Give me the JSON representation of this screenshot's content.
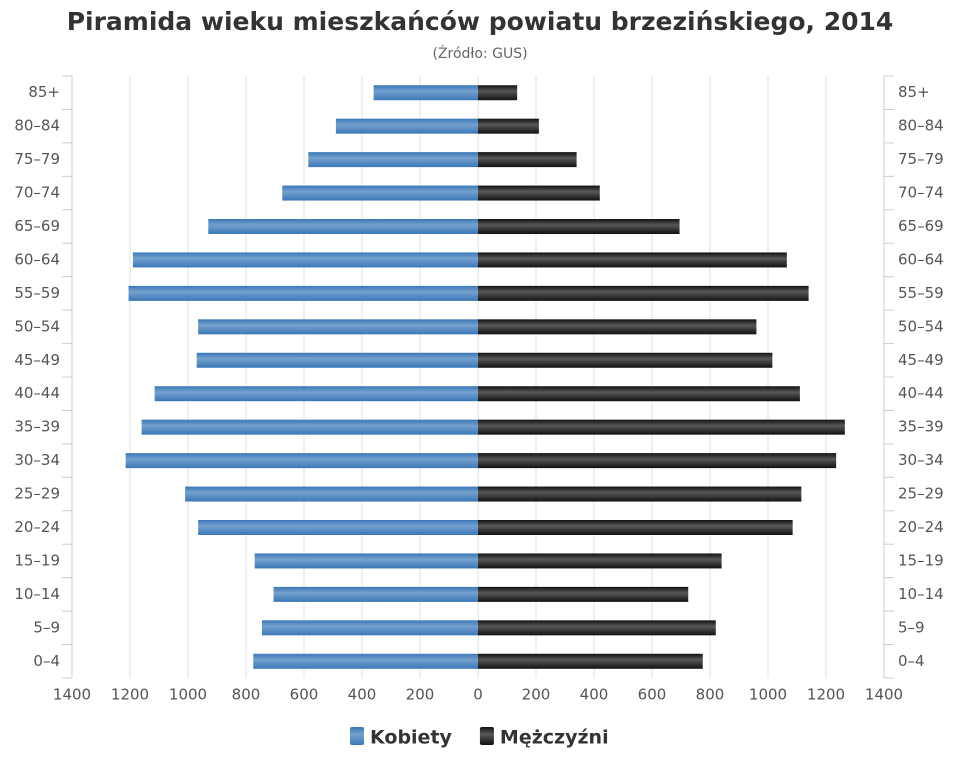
{
  "chart_data": {
    "type": "pyramid",
    "title": "Piramida wieku mieszkańców powiatu brzezińskiego, 2014",
    "subtitle": "(Źródło: GUS)",
    "categories": [
      "0–4",
      "5–9",
      "10–14",
      "15–19",
      "20–24",
      "25–29",
      "30–34",
      "35–39",
      "40–44",
      "45–49",
      "50–54",
      "55–59",
      "60–64",
      "65–69",
      "70–74",
      "75–79",
      "80–84",
      "85+"
    ],
    "series": [
      {
        "name": "Kobiety",
        "color": "#3a78b8",
        "values": [
          -775,
          -745,
          -705,
          -770,
          -965,
          -1010,
          -1215,
          -1160,
          -1115,
          -970,
          -965,
          -1205,
          -1190,
          -930,
          -675,
          -585,
          -490,
          -360
        ]
      },
      {
        "name": "Mężczyźni",
        "color": "#111111",
        "values": [
          775,
          820,
          725,
          840,
          1085,
          1115,
          1235,
          1265,
          1110,
          1015,
          960,
          1140,
          1065,
          695,
          420,
          340,
          210,
          135
        ]
      }
    ],
    "xlim": [
      -1400,
      1400
    ],
    "xticks": [
      {
        "value": -1400,
        "label": "1400"
      },
      {
        "value": -1200,
        "label": "1200"
      },
      {
        "value": -1000,
        "label": "1000"
      },
      {
        "value": -800,
        "label": "800"
      },
      {
        "value": -600,
        "label": "600"
      },
      {
        "value": -400,
        "label": "400"
      },
      {
        "value": -200,
        "label": "200"
      },
      0,
      200,
      400,
      600,
      800,
      1000,
      1200,
      1400
    ],
    "grid": true
  }
}
